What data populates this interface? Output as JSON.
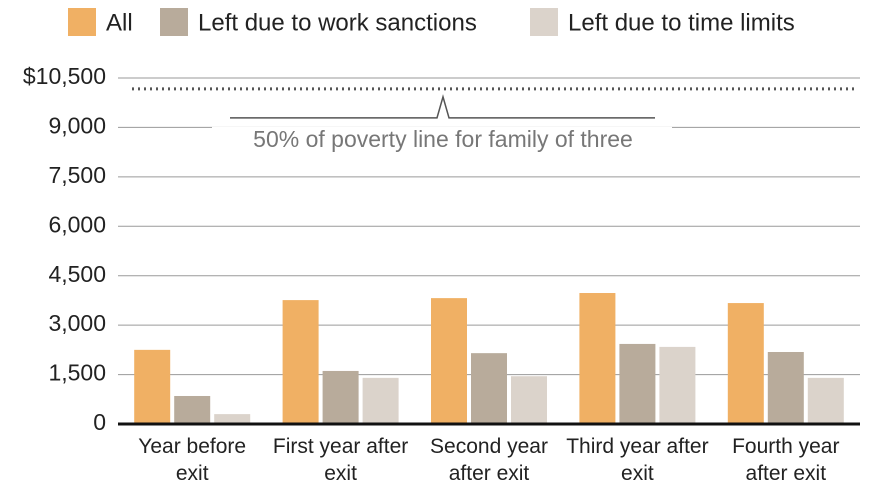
{
  "chart_data": {
    "type": "bar",
    "categories": [
      "Year before exit",
      "First year after exit",
      "Second year after exit",
      "Third year after exit",
      "Fourth year after exit"
    ],
    "series": [
      {
        "name": "All",
        "color": "#f0b064",
        "values": [
          2250,
          3760,
          3820,
          3975,
          3670
        ]
      },
      {
        "name": "Left due to work sanctions",
        "color": "#b8ab9b",
        "values": [
          850,
          1610,
          2150,
          2430,
          2185
        ]
      },
      {
        "name": "Left due to time limits",
        "color": "#dbd3cb",
        "values": [
          300,
          1400,
          1450,
          2340,
          1400
        ]
      }
    ],
    "ylim": [
      0,
      10500
    ],
    "yticks": [
      0,
      {
        "value": 1500,
        "label": "1,500"
      },
      {
        "value": 3000,
        "label": "3,000"
      },
      {
        "value": 4500,
        "label": "4,500"
      },
      {
        "value": 6000,
        "label": "6,000"
      },
      {
        "value": 7500,
        "label": "7,500"
      },
      {
        "value": 9000,
        "label": "9,000"
      },
      {
        "value": 10500,
        "label": "$10,500"
      }
    ],
    "grid": true,
    "legend": "top",
    "reference_line": {
      "value": 10170,
      "label": "50% of poverty line for family of three"
    }
  }
}
